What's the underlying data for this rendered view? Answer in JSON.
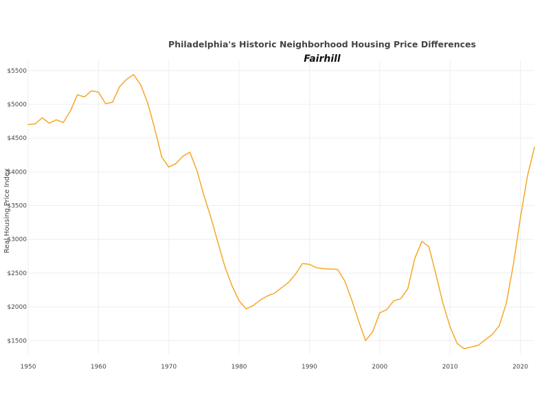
{
  "chart_data": {
    "type": "line",
    "title": "Philadelphia's Historic Neighborhood Housing Price Differences",
    "subtitle": "Fairhill",
    "xlabel": "",
    "ylabel": "Real Housing Price Index",
    "xlim": [
      1950,
      2022
    ],
    "ylim": [
      1300,
      5650
    ],
    "x_ticks": [
      1950,
      1960,
      1970,
      1980,
      1990,
      2000,
      2010,
      2020
    ],
    "y_ticks": [
      1500,
      2000,
      2500,
      3000,
      3500,
      4000,
      4500,
      5000,
      5500
    ],
    "y_tick_labels": [
      "$1500",
      "$2000",
      "$2500",
      "$3000",
      "$3500",
      "$4000",
      "$4500",
      "$5000",
      "$5500"
    ],
    "grid": true,
    "legend": "none",
    "line_color": "#f5a623",
    "series": [
      {
        "x": [
          1950,
          1951,
          1952,
          1953,
          1954,
          1955,
          1956,
          1957,
          1958,
          1959,
          1960,
          1961,
          1962,
          1963,
          1964,
          1965,
          1966,
          1967,
          1968,
          1969,
          1970,
          1971,
          1972,
          1973,
          1974,
          1975,
          1976,
          1977,
          1978,
          1979,
          1980,
          1981,
          1982,
          1983,
          1984,
          1985,
          1986,
          1987,
          1988,
          1989,
          1990,
          1991,
          1992,
          1993,
          1994,
          1995,
          1996,
          1997,
          1998,
          1999,
          2000,
          2001,
          2002,
          2003,
          2004,
          2005,
          2006,
          2007,
          2008,
          2009,
          2010,
          2011,
          2012,
          2013,
          2014,
          2015,
          2016,
          2017,
          2018,
          2019,
          2020,
          2021,
          2022
        ],
        "y": [
          4700,
          4710,
          4800,
          4720,
          4770,
          4730,
          4900,
          5140,
          5110,
          5200,
          5180,
          5010,
          5030,
          5260,
          5370,
          5440,
          5290,
          5020,
          4640,
          4220,
          4070,
          4120,
          4230,
          4290,
          4020,
          3650,
          3320,
          2950,
          2590,
          2310,
          2090,
          1970,
          2020,
          2100,
          2160,
          2200,
          2280,
          2360,
          2480,
          2640,
          2630,
          2580,
          2565,
          2560,
          2555,
          2390,
          2110,
          1790,
          1500,
          1630,
          1910,
          1960,
          2090,
          2120,
          2270,
          2720,
          2970,
          2890,
          2480,
          2050,
          1710,
          1460,
          1380,
          1405,
          1430,
          1510,
          1590,
          1720,
          2050,
          2620,
          3310,
          3930,
          4360
        ]
      }
    ]
  }
}
